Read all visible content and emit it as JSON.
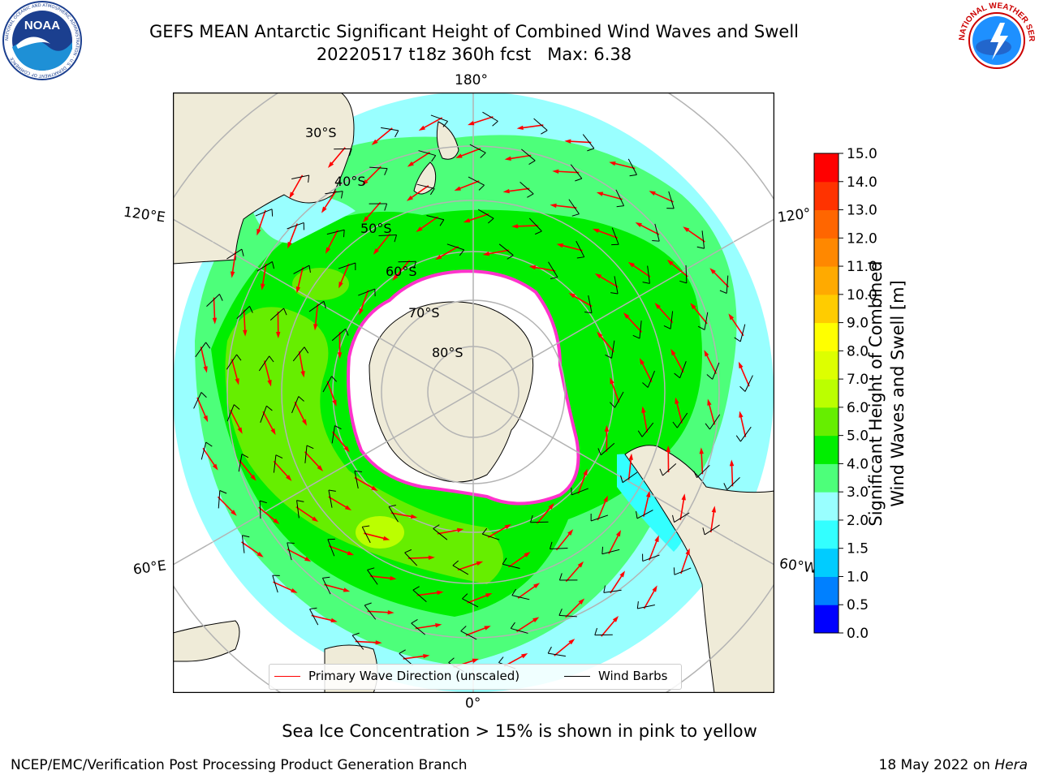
{
  "header": {
    "title_line1": "GEFS MEAN Antarctic Significant Height of Combined Wind Waves and Swell",
    "title_line2": "20220517 t18z 360h fcst   Max: 6.38",
    "logo_left": {
      "name": "noaa-logo",
      "text": "NOAA",
      "ring_text": "NATIONAL OCEANIC AND ATMOSPHERIC ADMINISTRATION · U.S. DEPARTMENT OF COMMERCE"
    },
    "logo_right": {
      "name": "nws-logo",
      "ring_text": "NATIONAL WEATHER SERVICE"
    }
  },
  "map": {
    "projection": "south-polar-stereographic",
    "longitude_labels": {
      "top": "180°",
      "bottom": "0°",
      "left_upper": "120°E",
      "left_lower": "60°E",
      "right_upper": "120°",
      "right_lower": "60°W"
    },
    "latitude_labels": [
      "30°S",
      "40°S",
      "50°S",
      "60°S",
      "70°S",
      "80°S"
    ],
    "colors": {
      "land": "#efebd8",
      "ice_shelf": "#ffffff",
      "sea_ice_edge": "#ff33cc",
      "gridline": "#b3b3b3",
      "wave_arrow": "#ff0000",
      "wind_barb": "#000000"
    },
    "legend": {
      "primary_wave": "Primary Wave Direction (unscaled)",
      "wind_barbs": "Wind Barbs"
    }
  },
  "colorbar": {
    "label_line1": "Significant Height of Combined",
    "label_line2": "Wind Waves and Swell [m]",
    "ticks": [
      "0.0",
      "0.5",
      "1.0",
      "1.5",
      "2.0",
      "3.0",
      "4.0",
      "5.0",
      "6.0",
      "7.0",
      "8.0",
      "9.0",
      "10.0",
      "11.0",
      "12.0",
      "13.0",
      "14.0",
      "15.0"
    ],
    "colors": [
      "#0000ff",
      "#0080ff",
      "#00ccff",
      "#33ffff",
      "#99ffff",
      "#4dff7a",
      "#00ee00",
      "#66ee00",
      "#bbff00",
      "#ddff00",
      "#ffff00",
      "#ffcc00",
      "#ffaa00",
      "#ff8800",
      "#ff6600",
      "#ff3300",
      "#ff0000"
    ]
  },
  "caption": "Sea Ice Concentration > 15% is shown in pink to yellow",
  "footer": {
    "left": "NCEP/EMC/Verification Post Processing Product Generation Branch",
    "right_date": "18 May 2022 on",
    "right_host": "Hera"
  }
}
